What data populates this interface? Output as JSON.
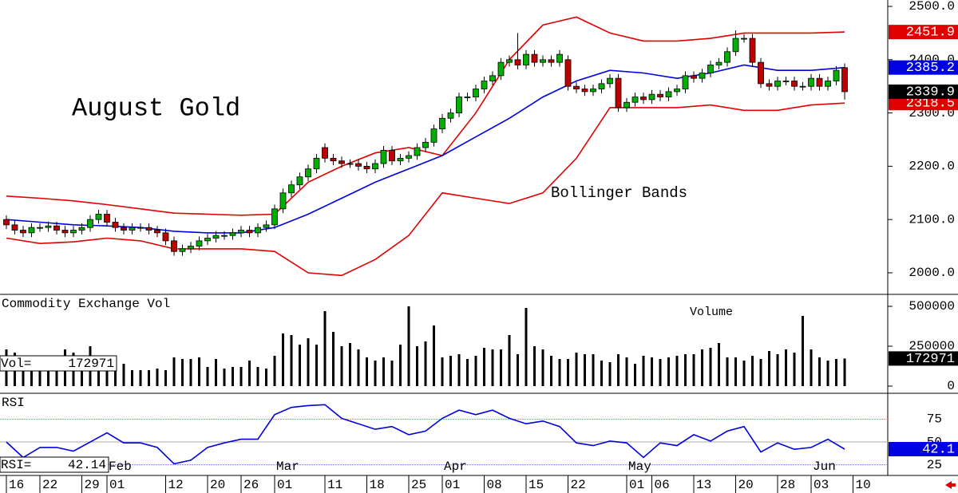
{
  "chart_data": {
    "type": "candlestick",
    "title": "August Gold",
    "annotation": "Bollinger Bands",
    "xlim": [
      -0.76,
      104.95
    ],
    "xticks": [
      {
        "value": 0,
        "label": "16"
      },
      {
        "value": 4,
        "label": "22"
      },
      {
        "value": 9,
        "label": "29"
      },
      {
        "value": 12,
        "label": "01"
      },
      {
        "value": 19,
        "label": "12"
      },
      {
        "value": 24,
        "label": "20"
      },
      {
        "value": 28,
        "label": "26"
      },
      {
        "value": 32,
        "label": "01"
      },
      {
        "value": 38,
        "label": "11"
      },
      {
        "value": 43,
        "label": "18"
      },
      {
        "value": 48,
        "label": "25"
      },
      {
        "value": 52,
        "label": "01"
      },
      {
        "value": 57,
        "label": "08"
      },
      {
        "value": 62,
        "label": "15"
      },
      {
        "value": 67,
        "label": "22"
      },
      {
        "value": 74,
        "label": "01"
      },
      {
        "value": 77,
        "label": "06"
      },
      {
        "value": 82,
        "label": "13"
      },
      {
        "value": 87,
        "label": "20"
      },
      {
        "value": 92,
        "label": "28"
      },
      {
        "value": 96,
        "label": "03"
      },
      {
        "value": 101,
        "label": "10"
      }
    ],
    "months": {
      "x": [
        12,
        32,
        52,
        74,
        96
      ],
      "labels": [
        "Feb",
        "Mar",
        "Apr",
        "May",
        "Jun"
      ]
    },
    "ylim": [
      1961,
      2512
    ],
    "yticks": [
      {
        "value": 2000,
        "label": "2000.0"
      },
      {
        "value": 2100,
        "label": "2100.0"
      },
      {
        "value": 2200,
        "label": "2200.0"
      },
      {
        "value": 2300,
        "label": "2300.0"
      },
      {
        "value": 2400,
        "label": "2400.0"
      },
      {
        "value": 2500,
        "label": "2500.0"
      }
    ],
    "up_color": "#00b000",
    "down_color": "#c00000",
    "candles": {
      "open": [
        2100,
        2090,
        2080,
        2075,
        2085,
        2085,
        2088,
        2080,
        2075,
        2080,
        2085,
        2100,
        2110,
        2095,
        2085,
        2080,
        2085,
        2085,
        2080,
        2075,
        2060,
        2040,
        2045,
        2050,
        2060,
        2065,
        2070,
        2070,
        2075,
        2080,
        2075,
        2085,
        2090,
        2120,
        2150,
        2165,
        2180,
        2195,
        2235,
        2215,
        2210,
        2205,
        2205,
        2200,
        2195,
        2205,
        2230,
        2210,
        2215,
        2220,
        2235,
        2245,
        2270,
        2290,
        2300,
        2330,
        2330,
        2345,
        2360,
        2370,
        2395,
        2400,
        2390,
        2410,
        2395,
        2400,
        2395,
        2400,
        2350,
        2345,
        2340,
        2345,
        2355,
        2365,
        2310,
        2320,
        2330,
        2325,
        2335,
        2330,
        2340,
        2345,
        2370,
        2365,
        2375,
        2390,
        2395,
        2415,
        2440,
        2440,
        2395,
        2355,
        2350,
        2360,
        2360,
        2350,
        2350,
        2365,
        2350,
        2360,
        2385
      ],
      "high": [
        2108,
        2098,
        2088,
        2093,
        2093,
        2096,
        2096,
        2088,
        2088,
        2093,
        2108,
        2118,
        2118,
        2103,
        2093,
        2093,
        2093,
        2093,
        2088,
        2083,
        2068,
        2053,
        2058,
        2068,
        2073,
        2078,
        2078,
        2083,
        2088,
        2088,
        2093,
        2098,
        2128,
        2158,
        2173,
        2188,
        2203,
        2223,
        2243,
        2223,
        2218,
        2213,
        2213,
        2208,
        2213,
        2238,
        2238,
        2223,
        2228,
        2243,
        2253,
        2278,
        2298,
        2308,
        2338,
        2338,
        2353,
        2368,
        2378,
        2403,
        2408,
        2450,
        2418,
        2418,
        2408,
        2408,
        2418,
        2408,
        2358,
        2353,
        2353,
        2363,
        2373,
        2373,
        2328,
        2338,
        2338,
        2343,
        2343,
        2348,
        2353,
        2378,
        2378,
        2383,
        2398,
        2403,
        2423,
        2455,
        2448,
        2448,
        2403,
        2363,
        2368,
        2368,
        2368,
        2358,
        2373,
        2373,
        2368,
        2388,
        2393
      ],
      "low": [
        2082,
        2072,
        2067,
        2067,
        2077,
        2077,
        2072,
        2067,
        2067,
        2072,
        2077,
        2092,
        2087,
        2077,
        2072,
        2072,
        2077,
        2072,
        2067,
        2052,
        2032,
        2032,
        2037,
        2042,
        2052,
        2057,
        2062,
        2062,
        2067,
        2067,
        2067,
        2077,
        2082,
        2112,
        2142,
        2157,
        2172,
        2187,
        2207,
        2202,
        2197,
        2197,
        2192,
        2187,
        2187,
        2197,
        2202,
        2202,
        2207,
        2212,
        2227,
        2237,
        2262,
        2282,
        2292,
        2322,
        2322,
        2337,
        2352,
        2362,
        2387,
        2382,
        2382,
        2387,
        2387,
        2387,
        2387,
        2342,
        2337,
        2332,
        2332,
        2337,
        2347,
        2302,
        2302,
        2312,
        2317,
        2317,
        2322,
        2322,
        2332,
        2337,
        2357,
        2357,
        2367,
        2382,
        2387,
        2407,
        2432,
        2387,
        2347,
        2342,
        2342,
        2352,
        2342,
        2342,
        2342,
        2342,
        2342,
        2352,
        2325
      ],
      "close": [
        2090,
        2080,
        2075,
        2085,
        2085,
        2088,
        2080,
        2075,
        2080,
        2085,
        2100,
        2110,
        2095,
        2085,
        2080,
        2085,
        2085,
        2080,
        2075,
        2060,
        2040,
        2045,
        2050,
        2060,
        2065,
        2070,
        2070,
        2075,
        2080,
        2075,
        2085,
        2090,
        2120,
        2150,
        2165,
        2180,
        2195,
        2215,
        2215,
        2210,
        2205,
        2205,
        2200,
        2195,
        2205,
        2230,
        2210,
        2215,
        2220,
        2235,
        2245,
        2270,
        2290,
        2300,
        2330,
        2330,
        2345,
        2360,
        2370,
        2395,
        2400,
        2390,
        2410,
        2395,
        2400,
        2395,
        2410,
        2350,
        2345,
        2340,
        2345,
        2355,
        2365,
        2310,
        2320,
        2330,
        2325,
        2335,
        2330,
        2340,
        2345,
        2370,
        2365,
        2375,
        2390,
        2395,
        2415,
        2440,
        2440,
        2395,
        2355,
        2350,
        2360,
        2360,
        2350,
        2350,
        2365,
        2350,
        2360,
        2380,
        2339.9
      ]
    },
    "bands": {
      "band_color": "#e00000",
      "middle_color": "#0000e0",
      "x": [
        0,
        4,
        8,
        12,
        16,
        20,
        24,
        28,
        32,
        36,
        40,
        44,
        48,
        52,
        56,
        60,
        64,
        68,
        72,
        76,
        80,
        84,
        88,
        92,
        96,
        100
      ],
      "upper": [
        2144,
        2140,
        2135,
        2128,
        2120,
        2112,
        2110,
        2108,
        2110,
        2170,
        2200,
        2225,
        2235,
        2220,
        2300,
        2400,
        2465,
        2480,
        2450,
        2435,
        2435,
        2440,
        2450,
        2450,
        2450,
        2451.9
      ],
      "middle": [
        2100,
        2095,
        2090,
        2088,
        2085,
        2078,
        2075,
        2075,
        2085,
        2110,
        2140,
        2170,
        2195,
        2220,
        2255,
        2290,
        2330,
        2360,
        2380,
        2375,
        2365,
        2375,
        2390,
        2380,
        2380,
        2385.2
      ],
      "lower": [
        2065,
        2055,
        2058,
        2065,
        2060,
        2045,
        2045,
        2045,
        2040,
        2000,
        1995,
        2025,
        2070,
        2150,
        2140,
        2130,
        2150,
        2215,
        2310,
        2310,
        2310,
        2315,
        2305,
        2305,
        2315,
        2318.5
      ]
    },
    "volume": {
      "title": "Commodity Exchange Vol",
      "label": "Volume",
      "readout_label": "Vol=",
      "color": "#000000",
      "ylim": [
        -40000,
        560000
      ],
      "yticks": [
        0,
        250000,
        500000
      ],
      "values": [
        230000,
        210000,
        150000,
        140000,
        140000,
        150000,
        140000,
        230000,
        210000,
        140000,
        250000,
        170000,
        180000,
        170000,
        140000,
        100000,
        100000,
        100000,
        110000,
        100000,
        180000,
        170000,
        170000,
        180000,
        120000,
        170000,
        110000,
        120000,
        120000,
        160000,
        120000,
        110000,
        190000,
        330000,
        320000,
        260000,
        300000,
        260000,
        470000,
        340000,
        250000,
        270000,
        230000,
        180000,
        160000,
        180000,
        160000,
        260000,
        500000,
        250000,
        280000,
        380000,
        180000,
        190000,
        200000,
        170000,
        190000,
        240000,
        230000,
        230000,
        320000,
        200000,
        490000,
        250000,
        230000,
        190000,
        170000,
        170000,
        210000,
        200000,
        200000,
        160000,
        150000,
        200000,
        180000,
        140000,
        190000,
        180000,
        170000,
        180000,
        190000,
        200000,
        200000,
        230000,
        240000,
        270000,
        180000,
        180000,
        160000,
        190000,
        170000,
        220000,
        200000,
        230000,
        210000,
        440000,
        230000,
        180000,
        160000,
        170000,
        172971
      ]
    },
    "rsi": {
      "title": "RSI",
      "readout_label": "RSI=",
      "color": "#0000e0",
      "tag": "42.1",
      "ylim": [
        15,
        100
      ],
      "yticks": [
        25,
        50,
        75
      ],
      "grid_colors": [
        "#8080ff",
        "#aaaaaa",
        "#ff8080"
      ],
      "x": [
        0,
        2,
        4,
        6,
        8,
        10,
        12,
        14,
        16,
        18,
        20,
        22,
        24,
        26,
        28,
        30,
        32,
        34,
        36,
        38,
        40,
        42,
        44,
        46,
        48,
        50,
        52,
        54,
        56,
        58,
        60,
        62,
        64,
        66,
        68,
        70,
        72,
        74,
        76,
        78,
        80,
        82,
        84,
        86,
        88,
        90,
        92,
        94,
        96,
        98,
        100
      ],
      "values": [
        50,
        33,
        44,
        44,
        40,
        50,
        60,
        49,
        49,
        44,
        26,
        30,
        44,
        49,
        53,
        53,
        80,
        88,
        90,
        91,
        76,
        70,
        64,
        67,
        58,
        62,
        76,
        85,
        80,
        85,
        76,
        70,
        73,
        67,
        49,
        46,
        51,
        49,
        33,
        49,
        46,
        58,
        51,
        62,
        67,
        39,
        49,
        42,
        44,
        53,
        42.14
      ]
    }
  }
}
